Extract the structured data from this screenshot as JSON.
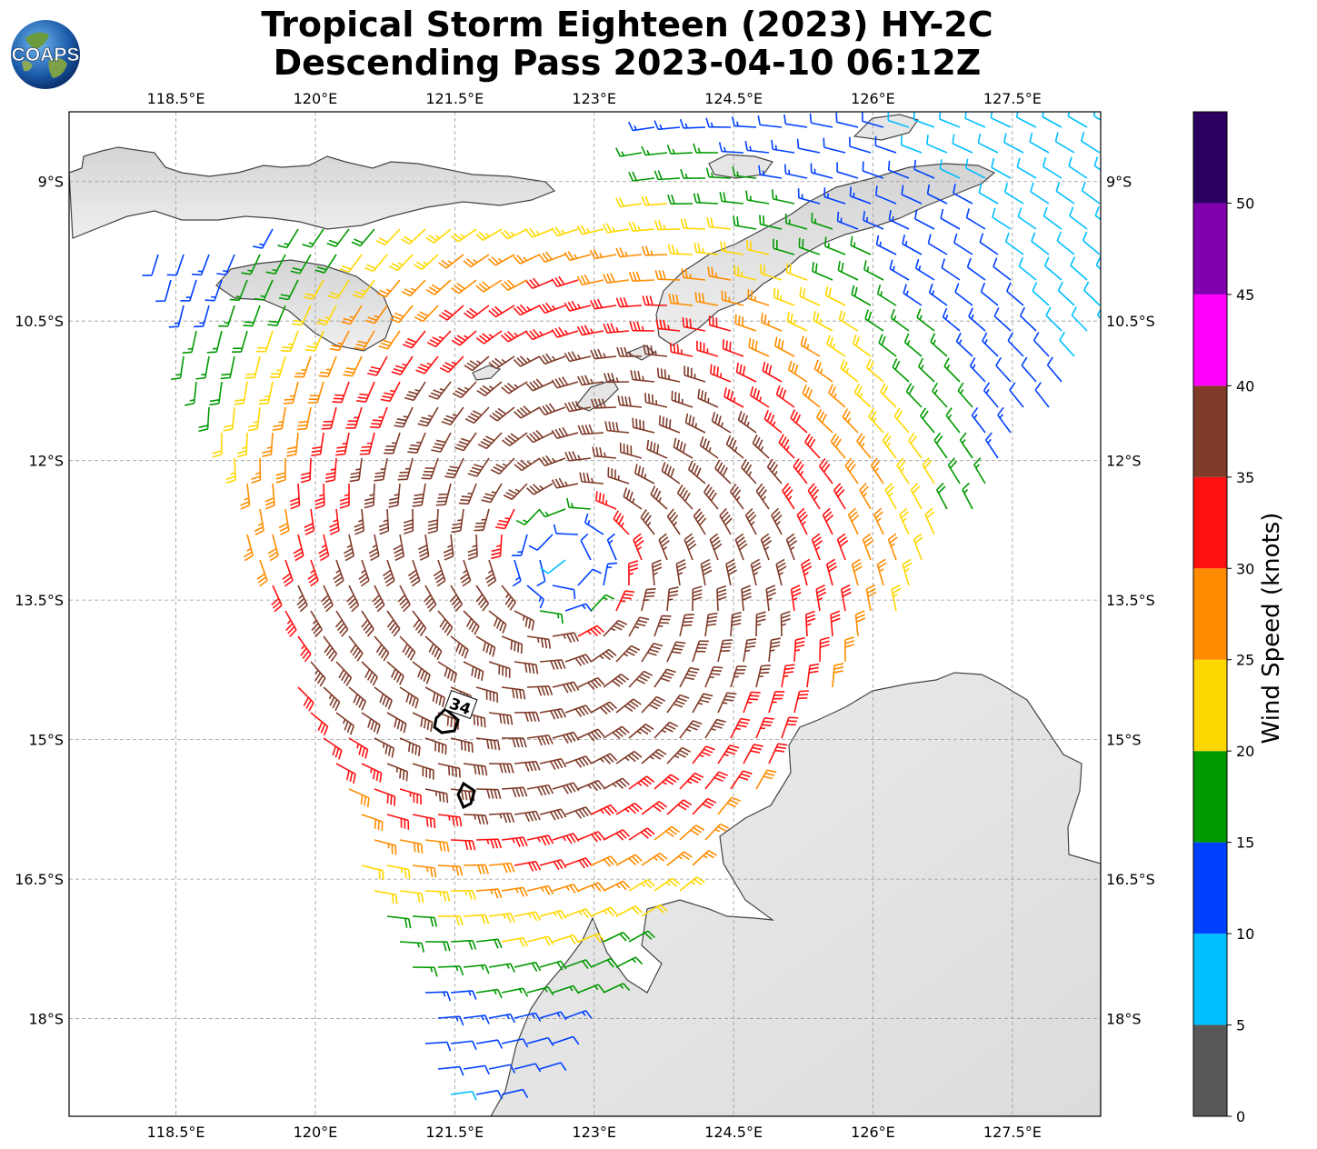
{
  "title": {
    "line1": "Tropical Storm Eighteen (2023) HY-2C",
    "line2": "Descending Pass 2023-04-10 06:12Z"
  },
  "logo": {
    "text": "COAPS",
    "icon": "globe-icon"
  },
  "map": {
    "lon_ticks": [
      "118.5°E",
      "120°E",
      "121.5°E",
      "123°E",
      "124.5°E",
      "126°E",
      "127.5°E"
    ],
    "lat_ticks": [
      "9°S",
      "10.5°S",
      "12°S",
      "13.5°S",
      "15°S",
      "16.5°S",
      "18°S"
    ],
    "lon_values": [
      118.5,
      120,
      121.5,
      123,
      124.5,
      126,
      127.5
    ],
    "lat_values": [
      -9,
      -10.5,
      -12,
      -13.5,
      -15,
      -16.5,
      -18
    ],
    "lon_range": [
      117.35,
      128.45
    ],
    "lat_range": [
      -19.05,
      -8.25
    ],
    "storm_center": {
      "lon": 122.7,
      "lat": -13.1
    },
    "contour_label": "34"
  },
  "colorbar": {
    "label": "Wind Speed (knots)",
    "ticks": [
      "0",
      "5",
      "10",
      "15",
      "20",
      "25",
      "30",
      "35",
      "40",
      "45",
      "50"
    ],
    "bins": [
      {
        "from": 0,
        "to": 5,
        "color": "#585858"
      },
      {
        "from": 5,
        "to": 10,
        "color": "#00bfff"
      },
      {
        "from": 10,
        "to": 15,
        "color": "#0040ff"
      },
      {
        "from": 15,
        "to": 20,
        "color": "#009900"
      },
      {
        "from": 20,
        "to": 25,
        "color": "#ffd700"
      },
      {
        "from": 25,
        "to": 30,
        "color": "#ff8c00"
      },
      {
        "from": 30,
        "to": 35,
        "color": "#ff1010"
      },
      {
        "from": 35,
        "to": 40,
        "color": "#7f3a28"
      },
      {
        "from": 40,
        "to": 45,
        "color": "#ff00ff"
      },
      {
        "from": 45,
        "to": 50,
        "color": "#8000b0"
      },
      {
        "from": 50,
        "to": 55,
        "color": "#2a0060"
      }
    ]
  }
}
